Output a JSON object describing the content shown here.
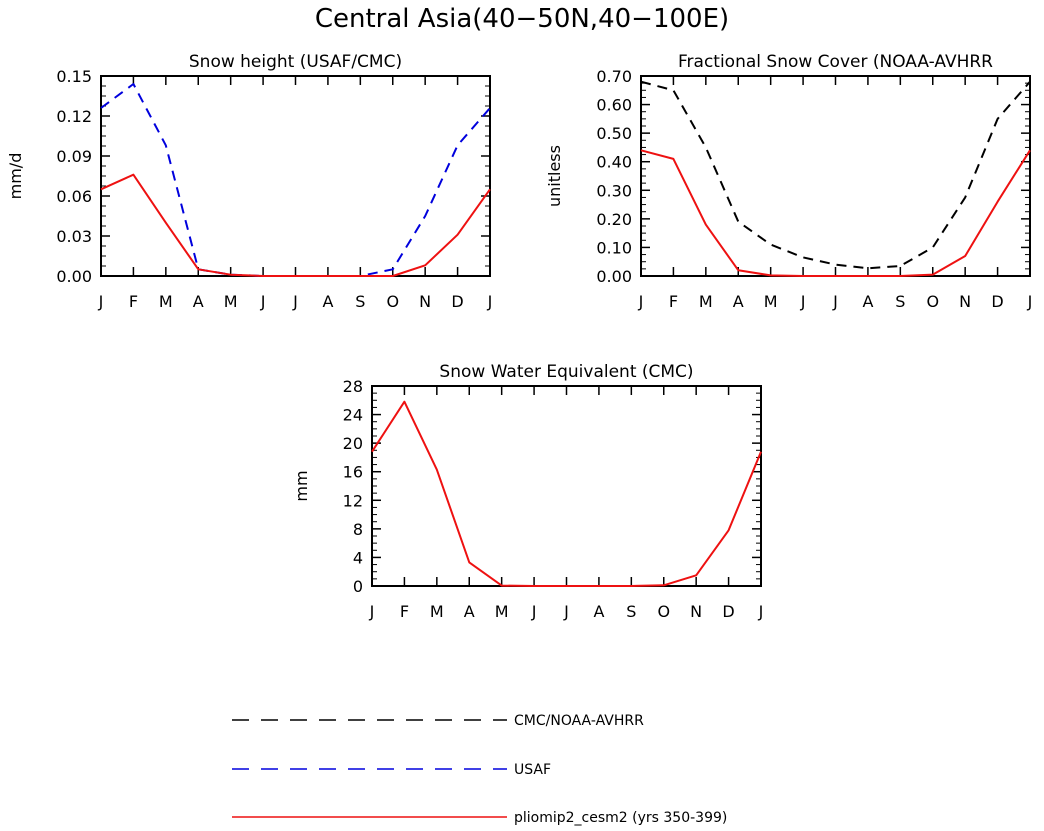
{
  "figure": {
    "title": "Central Asia(40−50N,40−100E)"
  },
  "styles": {
    "obs_cmc": {
      "color": "#000000",
      "dash": "10,7"
    },
    "obs_usaf": {
      "color": "#0000dd",
      "dash": "10,7"
    },
    "model": {
      "color": "#ee1111",
      "dash": ""
    }
  },
  "legend": [
    {
      "key": "obs_cmc",
      "label": "CMC/NOAA-AVHRR"
    },
    {
      "key": "obs_usaf",
      "label": "USAF"
    },
    {
      "key": "model",
      "label": "pliomip2_cesm2 (yrs 350-399)"
    }
  ],
  "chart_data": [
    {
      "type": "line",
      "title": "Snow height (USAF/CMC)",
      "xlabel": "",
      "ylabel": "mm/d",
      "categories": [
        "J",
        "F",
        "M",
        "A",
        "M",
        "J",
        "J",
        "A",
        "S",
        "O",
        "N",
        "D",
        "J"
      ],
      "yticks": [
        "0.00",
        "0.03",
        "0.06",
        "0.09",
        "0.12",
        "0.15"
      ],
      "ylim": [
        0,
        0.15
      ],
      "series": [
        {
          "name": "CMC",
          "style": "obs_cmc",
          "values": [
            0,
            0,
            0,
            0,
            0,
            0,
            0,
            0,
            0,
            0,
            0,
            0,
            0
          ]
        },
        {
          "name": "USAF",
          "style": "obs_usaf",
          "values": [
            0.126,
            0.144,
            0.098,
            0.005,
            0.001,
            0,
            0,
            0,
            0,
            0.005,
            0.045,
            0.098,
            0.126
          ]
        },
        {
          "name": "pliomip2_cesm2 (yrs 350-399)",
          "style": "model",
          "values": [
            0.065,
            0.076,
            0.04,
            0.005,
            0.001,
            0,
            0,
            0,
            0,
            0,
            0.008,
            0.031,
            0.065
          ]
        }
      ]
    },
    {
      "type": "line",
      "title": "Fractional Snow Cover (NOAA-AVHRR",
      "xlabel": "",
      "ylabel": "unitless",
      "categories": [
        "J",
        "F",
        "M",
        "A",
        "M",
        "J",
        "J",
        "A",
        "S",
        "O",
        "N",
        "D",
        "J"
      ],
      "yticks": [
        "0.00",
        "0.10",
        "0.20",
        "0.30",
        "0.40",
        "0.50",
        "0.60",
        "0.70"
      ],
      "ylim": [
        0,
        0.7
      ],
      "series": [
        {
          "name": "NOAA-AVHRR",
          "style": "obs_cmc",
          "values": [
            0.68,
            0.65,
            0.45,
            0.19,
            0.11,
            0.065,
            0.04,
            0.027,
            0.035,
            0.1,
            0.275,
            0.55,
            0.68
          ]
        },
        {
          "name": "pliomip2_cesm2 (yrs 350-399)",
          "style": "model",
          "values": [
            0.44,
            0.41,
            0.18,
            0.02,
            0.002,
            0,
            0,
            0,
            0,
            0.005,
            0.07,
            0.26,
            0.44
          ]
        }
      ]
    },
    {
      "type": "line",
      "title": "Snow Water Equivalent (CMC)",
      "xlabel": "",
      "ylabel": "mm",
      "categories": [
        "J",
        "F",
        "M",
        "A",
        "M",
        "J",
        "J",
        "A",
        "S",
        "O",
        "N",
        "D",
        "J"
      ],
      "yticks": [
        "0",
        "4",
        "8",
        "12",
        "16",
        "20",
        "24",
        "28"
      ],
      "ylim": [
        0,
        28
      ],
      "series": [
        {
          "name": "CMC",
          "style": "obs_cmc",
          "values": [
            0,
            0,
            0,
            0,
            0,
            0,
            0,
            0,
            0,
            0,
            0,
            0,
            0
          ]
        },
        {
          "name": "pliomip2_cesm2 (yrs 350-399)",
          "style": "model",
          "values": [
            18.8,
            25.8,
            16.3,
            3.3,
            0.05,
            0,
            0,
            0,
            0,
            0.1,
            1.5,
            7.8,
            18.8
          ]
        }
      ]
    }
  ]
}
